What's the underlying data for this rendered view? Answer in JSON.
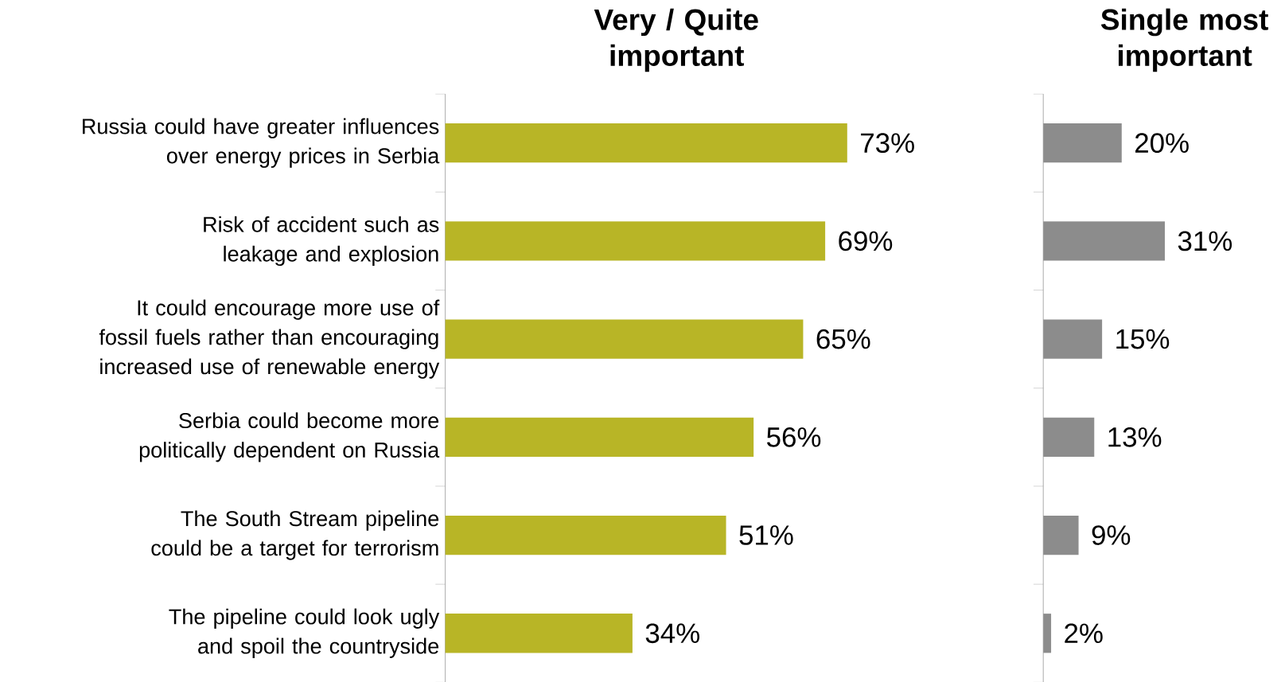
{
  "chart_data": [
    {
      "type": "bar",
      "orientation": "horizontal",
      "title": "Very / Quite important",
      "categories": [
        "Russia could have greater influences over energy prices in Serbia",
        "Risk of accident such as leakage and explosion",
        "It could encourage more use of fossil fuels rather than encouraging increased use of renewable energy",
        "Serbia could become more politically dependent on Russia",
        "The South Stream pipeline could be a target for terrorism",
        "The pipeline could look ugly and spoil the countryside"
      ],
      "values": [
        73,
        69,
        65,
        56,
        51,
        34
      ],
      "value_labels": [
        "73%",
        "69%",
        "65%",
        "56%",
        "51%",
        "34%"
      ],
      "color": "#b8b526",
      "tick_labels": "y"
    },
    {
      "type": "bar",
      "orientation": "horizontal",
      "title": "Single most important",
      "categories": [
        null,
        null,
        null,
        null,
        null,
        null
      ],
      "values": [
        20,
        31,
        15,
        13,
        9,
        2
      ],
      "value_labels": [
        "20%",
        "31%",
        "15%",
        "13%",
        "9%",
        "2%"
      ],
      "color": "#8c8c8c",
      "tick_labels": false
    }
  ]
}
